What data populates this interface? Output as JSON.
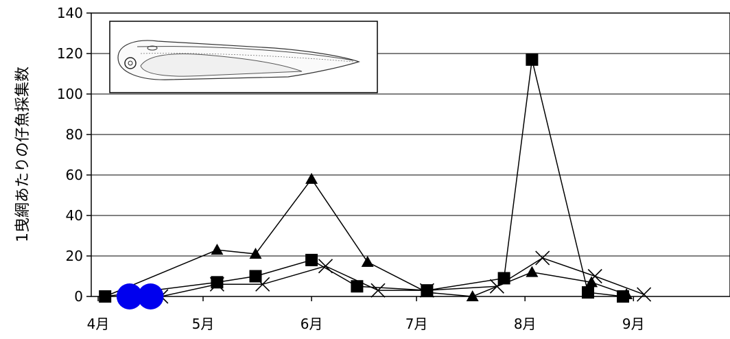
{
  "chart_data": {
    "type": "line",
    "ylabel": "1曳網あたりの仔魚採集数",
    "xlabel": "",
    "ylim": [
      0,
      140
    ],
    "yticks": [
      0,
      20,
      40,
      60,
      80,
      100,
      120,
      140
    ],
    "xticks": [
      {
        "label": "4月",
        "day": 0
      },
      {
        "label": "5月",
        "day": 30
      },
      {
        "label": "6月",
        "day": 61
      },
      {
        "label": "7月",
        "day": 91
      },
      {
        "label": "8月",
        "day": 122
      },
      {
        "label": "9月",
        "day": 153
      }
    ],
    "grid": "horizontal",
    "x_unit": "date",
    "series": [
      {
        "marker": "triangle",
        "points": [
          {
            "x": "4月初",
            "day": 2,
            "y": 0
          },
          {
            "x": "5月上旬",
            "day": 34,
            "y": 23
          },
          {
            "x": "5月中旬",
            "day": 45,
            "y": 21
          },
          {
            "x": "6月初",
            "day": 61,
            "y": 58
          },
          {
            "x": "6月中旬",
            "day": 77,
            "y": 17
          },
          {
            "x": "7月初",
            "day": 94,
            "y": 2
          },
          {
            "x": "7月中旬",
            "day": 107,
            "y": 0
          },
          {
            "x": "8月初",
            "day": 124,
            "y": 12
          },
          {
            "x": "8月中旬",
            "day": 141,
            "y": 7
          },
          {
            "x": "8月下旬",
            "day": 151,
            "y": 1
          }
        ]
      },
      {
        "marker": "square",
        "points": [
          {
            "x": "4月初",
            "day": 2,
            "y": 0
          },
          {
            "x": "5月上旬",
            "day": 34,
            "y": 7
          },
          {
            "x": "5月中旬",
            "day": 45,
            "y": 10
          },
          {
            "x": "6月初",
            "day": 61,
            "y": 18
          },
          {
            "x": "6月中旬",
            "day": 74,
            "y": 5
          },
          {
            "x": "7月初",
            "day": 94,
            "y": 3
          },
          {
            "x": "7月下旬",
            "day": 116,
            "y": 9
          },
          {
            "x": "8月初",
            "day": 124,
            "y": 117
          },
          {
            "x": "8月中旬",
            "day": 140,
            "y": 2
          },
          {
            "x": "8月下旬",
            "day": 150,
            "y": 0
          }
        ]
      },
      {
        "marker": "x",
        "points": [
          {
            "x": "4月中旬",
            "day": 18,
            "y": 0
          },
          {
            "x": "5月上旬",
            "day": 34,
            "y": 6
          },
          {
            "x": "5月中旬",
            "day": 47,
            "y": 6
          },
          {
            "x": "6月上旬",
            "day": 65,
            "y": 15
          },
          {
            "x": "6月下旬",
            "day": 80,
            "y": 3
          },
          {
            "x": "7月初",
            "day": 94,
            "y": 3
          },
          {
            "x": "7月下旬",
            "day": 114,
            "y": 5
          },
          {
            "x": "8月上旬",
            "day": 127,
            "y": 19
          },
          {
            "x": "8月中旬",
            "day": 142,
            "y": 10
          },
          {
            "x": "9月初",
            "day": 156,
            "y": 1
          }
        ]
      },
      {
        "marker": "circle",
        "color": "#0000ee",
        "points": [
          {
            "x": "4月上旬",
            "day": 9,
            "y": 0
          },
          {
            "x": "4月中旬",
            "day": 15,
            "y": 0
          }
        ]
      }
    ]
  }
}
